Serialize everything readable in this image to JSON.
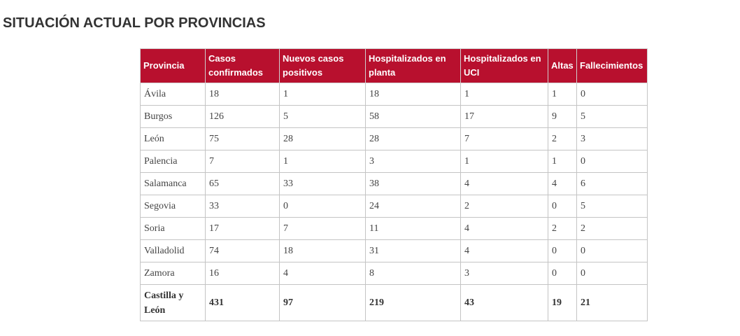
{
  "title": "SITUACIÓN ACTUAL POR PROVINCIAS",
  "columns": [
    "Provincia",
    "Casos confirmados",
    "Nuevos casos positivos",
    "Hospitalizados en planta",
    "Hospitalizados en UCI",
    "Altas",
    "Fallecimientos"
  ],
  "rows": [
    [
      "Ávila",
      "18",
      "1",
      "18",
      "1",
      "1",
      "0"
    ],
    [
      "Burgos",
      "126",
      "5",
      "58",
      "17",
      "9",
      "5"
    ],
    [
      "León",
      "75",
      "28",
      "28",
      "7",
      "2",
      "3"
    ],
    [
      "Palencia",
      "7",
      "1",
      "3",
      "1",
      "1",
      "0"
    ],
    [
      "Salamanca",
      "65",
      "33",
      "38",
      "4",
      "4",
      "6"
    ],
    [
      "Segovia",
      "33",
      "0",
      "24",
      "2",
      "0",
      "5"
    ],
    [
      "Soria",
      "17",
      "7",
      "11",
      "4",
      "2",
      "2"
    ],
    [
      "Valladolid",
      "74",
      "18",
      "31",
      "4",
      "0",
      "0"
    ],
    [
      "Zamora",
      "16",
      "4",
      "8",
      "3",
      "0",
      "0"
    ]
  ],
  "total": [
    "Castilla y León",
    "431",
    "97",
    "219",
    "43",
    "19",
    "21"
  ]
}
